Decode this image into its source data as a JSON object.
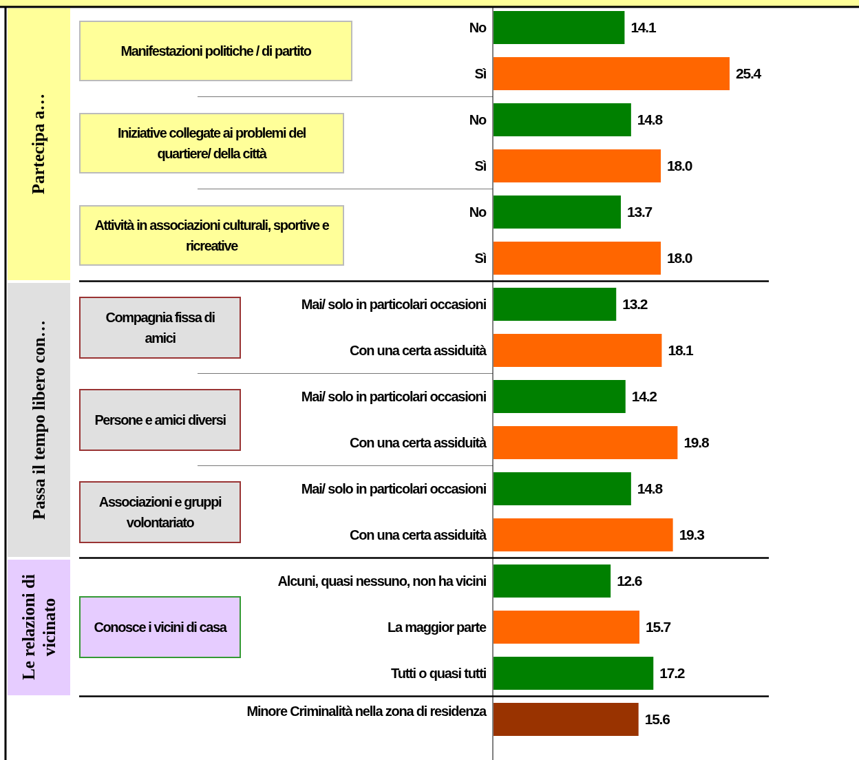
{
  "chart_data": {
    "type": "bar",
    "orientation": "horizontal",
    "categories": [
      "No",
      "Sì",
      "No",
      "Sì",
      "No",
      "Sì",
      "Mai/ solo in particolari occasioni",
      "Con una certa assiduità",
      "Mai/ solo in particolari occasioni",
      "Con una certa assiduità",
      "Mai/ solo in particolari occasioni",
      "Con una certa assiduità",
      "Alcuni, quasi nessuno, non ha vicini",
      "La maggior parte",
      "Tutti o quasi tutti",
      "Minore Criminalità nella zona di residenza"
    ],
    "values": [
      14.1,
      25.4,
      14.8,
      18.0,
      13.7,
      18.0,
      13.2,
      18.1,
      14.2,
      19.8,
      14.8,
      19.3,
      12.6,
      15.7,
      17.2,
      15.6
    ],
    "colors": [
      "#008000",
      "#ff6600",
      "#008000",
      "#ff6600",
      "#008000",
      "#ff6600",
      "#008000",
      "#ff6600",
      "#008000",
      "#ff6600",
      "#008000",
      "#ff6600",
      "#008000",
      "#ff6600",
      "#008000",
      "#993300"
    ],
    "value_labels": [
      "14.1",
      "25.4",
      "14.8",
      "18.0",
      "13.7",
      "18.0",
      "13.2",
      "18.1",
      "14.2",
      "19.8",
      "14.8",
      "19.3",
      "12.6",
      "15.7",
      "17.2",
      "15.6"
    ],
    "annotations": [
      "Manifestazioni politiche / di partito",
      "Iniziative collegate ai problemi del quartiere/ della città",
      "Attività in associazioni culturali, sportive e ricreative",
      "Compagnia fissa di amici",
      "Persone e amici diversi",
      "Associazioni e gruppi volontariato",
      "Conosce i vicini di casa",
      "Partecipa a…",
      "Passa il tempo libero con…",
      "Le relazioni di vicinato"
    ]
  }
}
